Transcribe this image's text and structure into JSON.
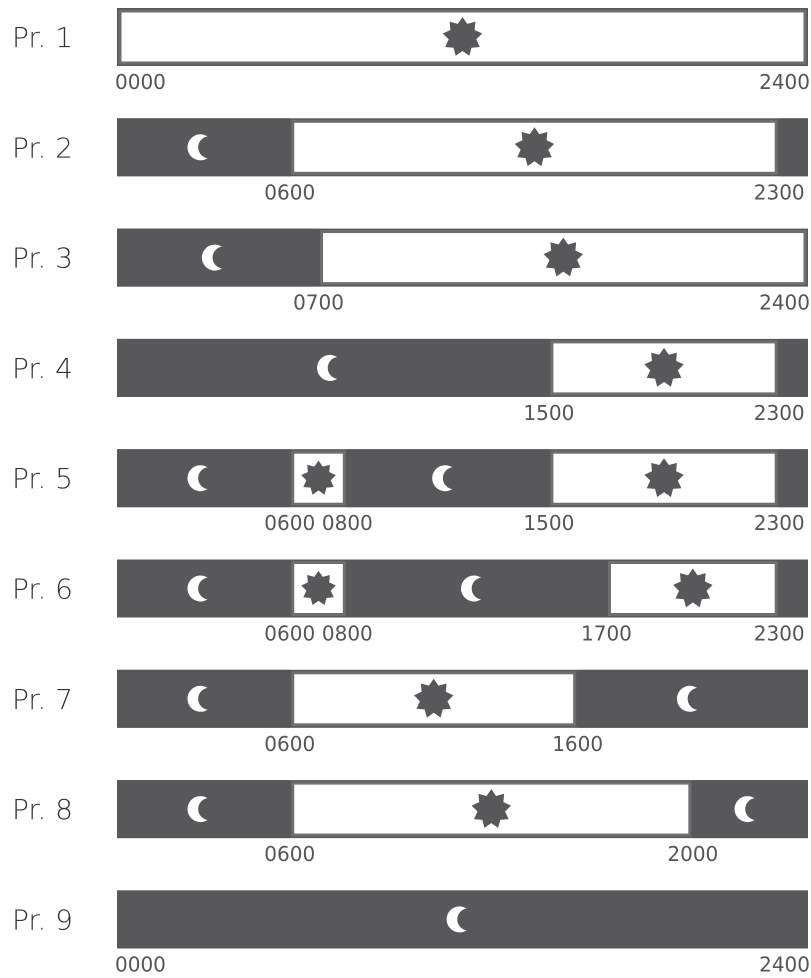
{
  "colors": {
    "dark": "#58585b",
    "light": "#ffffff",
    "outline": "#6e6e70",
    "text": "#3a3a3a"
  },
  "icons": {
    "day": "star-icon",
    "night": "moon-icon"
  },
  "rows": [
    {
      "label": "Pr. 1",
      "segments": [
        {
          "type": "day",
          "start": 0,
          "end": 24
        }
      ],
      "ticks": [
        {
          "hour": 0,
          "text": "0000"
        },
        {
          "hour": 24,
          "text": "2400"
        }
      ]
    },
    {
      "label": "Pr. 2",
      "segments": [
        {
          "type": "night",
          "start": 0,
          "end": 6
        },
        {
          "type": "day",
          "start": 6,
          "end": 23
        },
        {
          "type": "night",
          "start": 23,
          "end": 24
        }
      ],
      "ticks": [
        {
          "hour": 6,
          "text": "0600"
        },
        {
          "hour": 23,
          "text": "2300"
        }
      ]
    },
    {
      "label": "Pr. 3",
      "segments": [
        {
          "type": "night",
          "start": 0,
          "end": 7
        },
        {
          "type": "day",
          "start": 7,
          "end": 24
        }
      ],
      "ticks": [
        {
          "hour": 7,
          "text": "0700"
        },
        {
          "hour": 24,
          "text": "2400"
        }
      ]
    },
    {
      "label": "Pr. 4",
      "segments": [
        {
          "type": "night",
          "start": 0,
          "end": 15
        },
        {
          "type": "day",
          "start": 15,
          "end": 23
        },
        {
          "type": "night",
          "start": 23,
          "end": 24
        }
      ],
      "ticks": [
        {
          "hour": 15,
          "text": "1500"
        },
        {
          "hour": 23,
          "text": "2300"
        }
      ]
    },
    {
      "label": "Pr. 5",
      "segments": [
        {
          "type": "night",
          "start": 0,
          "end": 6
        },
        {
          "type": "day",
          "start": 6,
          "end": 8
        },
        {
          "type": "night",
          "start": 8,
          "end": 15
        },
        {
          "type": "day",
          "start": 15,
          "end": 23
        },
        {
          "type": "night",
          "start": 23,
          "end": 24
        }
      ],
      "ticks": [
        {
          "hour": 6,
          "text": "0600"
        },
        {
          "hour": 8,
          "text": "0800"
        },
        {
          "hour": 15,
          "text": "1500"
        },
        {
          "hour": 23,
          "text": "2300"
        }
      ]
    },
    {
      "label": "Pr. 6",
      "segments": [
        {
          "type": "night",
          "start": 0,
          "end": 6
        },
        {
          "type": "day",
          "start": 6,
          "end": 8
        },
        {
          "type": "night",
          "start": 8,
          "end": 17
        },
        {
          "type": "day",
          "start": 17,
          "end": 23
        },
        {
          "type": "night",
          "start": 23,
          "end": 24
        }
      ],
      "ticks": [
        {
          "hour": 6,
          "text": "0600"
        },
        {
          "hour": 8,
          "text": "0800"
        },
        {
          "hour": 17,
          "text": "1700"
        },
        {
          "hour": 23,
          "text": "2300"
        }
      ]
    },
    {
      "label": "Pr. 7",
      "segments": [
        {
          "type": "night",
          "start": 0,
          "end": 6
        },
        {
          "type": "day",
          "start": 6,
          "end": 16
        },
        {
          "type": "night",
          "start": 16,
          "end": 24
        }
      ],
      "ticks": [
        {
          "hour": 6,
          "text": "0600"
        },
        {
          "hour": 16,
          "text": "1600"
        }
      ]
    },
    {
      "label": "Pr. 8",
      "segments": [
        {
          "type": "night",
          "start": 0,
          "end": 6
        },
        {
          "type": "day",
          "start": 6,
          "end": 20
        },
        {
          "type": "night",
          "start": 20,
          "end": 24
        }
      ],
      "ticks": [
        {
          "hour": 6,
          "text": "0600"
        },
        {
          "hour": 20,
          "text": "2000"
        }
      ]
    },
    {
      "label": "Pr. 9",
      "segments": [
        {
          "type": "night",
          "start": 0,
          "end": 24
        }
      ],
      "ticks": [
        {
          "hour": 0,
          "text": "0000"
        },
        {
          "hour": 24,
          "text": "2400"
        }
      ]
    }
  ]
}
